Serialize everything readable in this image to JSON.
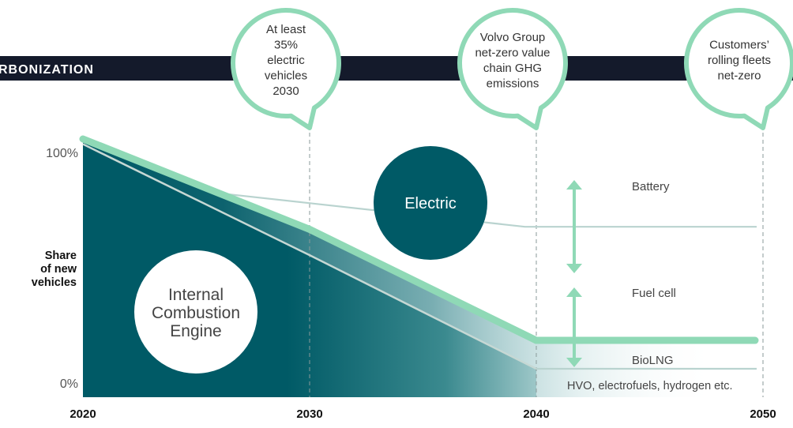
{
  "header": {
    "title": "RBONIZATION"
  },
  "colors": {
    "dark_teal": "#005a66",
    "mint": "#8fd9b6",
    "navy_band": "#141a2b",
    "grey_line": "#bfd0cc",
    "text": "#333333"
  },
  "callouts": [
    {
      "lines": [
        "At least",
        "35%",
        "electric",
        "vehicles",
        "2030"
      ],
      "year": 2030
    },
    {
      "lines": [
        "Volvo Group",
        "net-zero value",
        "chain GHG",
        "emissions"
      ],
      "year": 2040
    },
    {
      "lines": [
        "Customers’",
        "rolling fleets",
        "net-zero"
      ],
      "year": 2050
    }
  ],
  "chart_data": {
    "type": "area",
    "title": "",
    "xlabel": "",
    "ylabel": "Share of new vehicles",
    "ylabel_lines": [
      "Share",
      "of new",
      "vehicles"
    ],
    "x_ticks": [
      "2020",
      "2030",
      "2040",
      "2050"
    ],
    "y_ticks": [
      "100%",
      "0%"
    ],
    "xlim": [
      2020,
      2050
    ],
    "ylim": [
      0,
      100
    ],
    "series": [
      {
        "name": "Internal Combustion Engine",
        "label_lines": [
          "Internal",
          "Combustion",
          "Engine"
        ],
        "x": [
          2020,
          2030,
          2040
        ],
        "y": [
          98,
          55,
          11
        ]
      },
      {
        "name": "Electric",
        "label_lines": [
          "Electric"
        ],
        "x": [
          2020,
          2030,
          2040,
          2050
        ],
        "y": [
          100,
          65,
          22,
          22
        ]
      }
    ],
    "segment_lines": [
      {
        "x": [
          2020,
          2026,
          2039.5,
          2050
        ],
        "y": [
          100,
          79,
          66,
          66
        ]
      },
      {
        "x": [
          2040,
          2050
        ],
        "y": [
          11,
          11
        ]
      }
    ],
    "segment_labels": [
      "Battery",
      "Fuel cell",
      "BioLNG",
      "HVO, electrofuels, hydrogen etc."
    ]
  }
}
